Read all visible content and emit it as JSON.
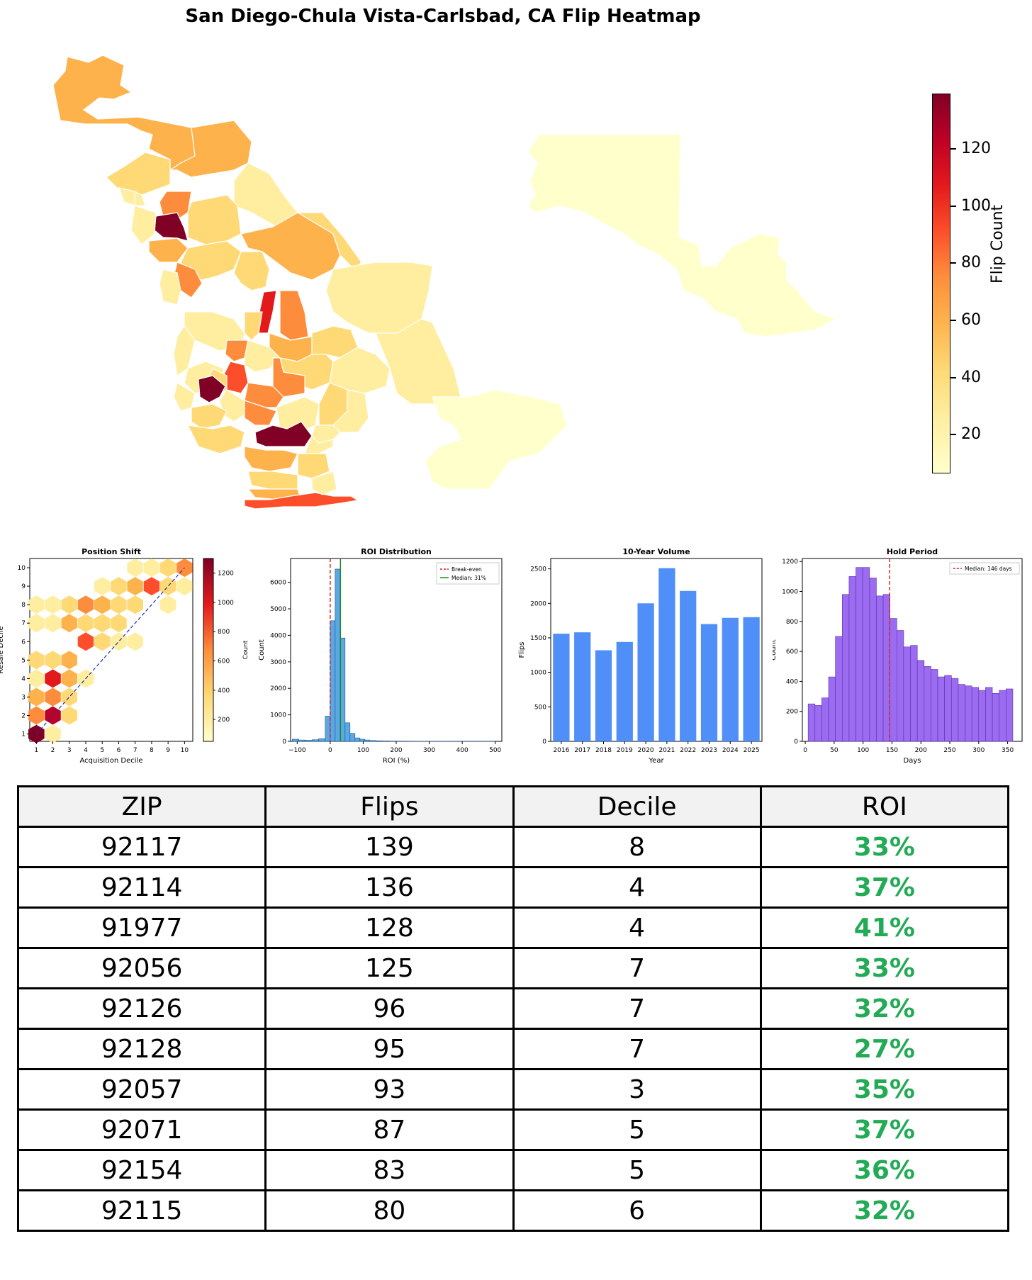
{
  "title": "San Diego-Chula Vista-Carlsbad, CA Flip Heatmap",
  "colorbar": {
    "label": "Flip Count",
    "ticks": [
      "20",
      "40",
      "60",
      "80",
      "100",
      "120"
    ],
    "min": 5,
    "max": 139
  },
  "colors": {
    "roi_positive": "#22aa55",
    "bar": "#4f8ff7",
    "hold_bar": "#9b6cf0",
    "roi_bar": "#5aa9e6"
  },
  "chart_data": [
    {
      "type": "heatmap",
      "title": "Position Shift",
      "xlabel": "Acquisition Decile",
      "ylabel": "Resale Decile",
      "colorbar_label": "Count",
      "x_ticks": [
        "1",
        "2",
        "3",
        "4",
        "5",
        "6",
        "7",
        "8",
        "9",
        "10"
      ],
      "y_ticks": [
        "1",
        "2",
        "3",
        "4",
        "5",
        "6",
        "7",
        "8",
        "9",
        "10"
      ],
      "colorbar_ticks": [
        "200",
        "400",
        "600",
        "800",
        "1000",
        "1200"
      ],
      "xlim": [
        1,
        10
      ],
      "ylim": [
        1,
        10
      ],
      "cells": [
        {
          "x": 1,
          "y": 1,
          "v": 1300
        },
        {
          "x": 2,
          "y": 1,
          "v": 150
        },
        {
          "x": 1,
          "y": 2,
          "v": 650
        },
        {
          "x": 2,
          "y": 2,
          "v": 1100
        },
        {
          "x": 3,
          "y": 2,
          "v": 400
        },
        {
          "x": 1,
          "y": 3,
          "v": 550
        },
        {
          "x": 2,
          "y": 3,
          "v": 700
        },
        {
          "x": 3,
          "y": 3,
          "v": 350
        },
        {
          "x": 2,
          "y": 4,
          "v": 900
        },
        {
          "x": 3,
          "y": 4,
          "v": 450
        },
        {
          "x": 4,
          "y": 4,
          "v": 200
        },
        {
          "x": 1,
          "y": 4,
          "v": 200
        },
        {
          "x": 2,
          "y": 5,
          "v": 400
        },
        {
          "x": 3,
          "y": 5,
          "v": 500
        },
        {
          "x": 1,
          "y": 5,
          "v": 250
        },
        {
          "x": 4,
          "y": 6,
          "v": 850
        },
        {
          "x": 5,
          "y": 6,
          "v": 250
        },
        {
          "x": 6,
          "y": 6,
          "v": 150
        },
        {
          "x": 7,
          "y": 6,
          "v": 150
        },
        {
          "x": 1,
          "y": 7,
          "v": 150
        },
        {
          "x": 2,
          "y": 7,
          "v": 200
        },
        {
          "x": 3,
          "y": 7,
          "v": 450
        },
        {
          "x": 4,
          "y": 8,
          "v": 600
        },
        {
          "x": 5,
          "y": 8,
          "v": 550
        },
        {
          "x": 6,
          "y": 8,
          "v": 300
        },
        {
          "x": 3,
          "y": 8,
          "v": 250
        },
        {
          "x": 1,
          "y": 8,
          "v": 150
        },
        {
          "x": 2,
          "y": 8,
          "v": 150
        },
        {
          "x": 7,
          "y": 8,
          "v": 400
        },
        {
          "x": 4,
          "y": 7,
          "v": 350
        },
        {
          "x": 5,
          "y": 7,
          "v": 300
        },
        {
          "x": 6,
          "y": 7,
          "v": 250
        },
        {
          "x": 7,
          "y": 9,
          "v": 450
        },
        {
          "x": 8,
          "y": 9,
          "v": 800
        },
        {
          "x": 9,
          "y": 9,
          "v": 300
        },
        {
          "x": 5,
          "y": 9,
          "v": 200
        },
        {
          "x": 6,
          "y": 9,
          "v": 250
        },
        {
          "x": 8,
          "y": 10,
          "v": 200
        },
        {
          "x": 9,
          "y": 10,
          "v": 300
        },
        {
          "x": 10,
          "y": 10,
          "v": 700
        },
        {
          "x": 7,
          "y": 10,
          "v": 150
        },
        {
          "x": 10,
          "y": 9,
          "v": 200
        },
        {
          "x": 9,
          "y": 8,
          "v": 200
        }
      ]
    },
    {
      "type": "bar",
      "title": "ROI Distribution",
      "xlabel": "ROI (%)",
      "ylabel": "Count",
      "x_ticks": [
        "−100",
        "0",
        "100",
        "200",
        "300",
        "400",
        "500"
      ],
      "y_ticks": [
        "0",
        "1000",
        "2000",
        "3000",
        "4000",
        "5000",
        "6000"
      ],
      "xlim": [
        -120,
        520
      ],
      "ylim": [
        0,
        6900
      ],
      "bin_edges": [
        -115,
        -95,
        -75,
        -55,
        -35,
        -15,
        0,
        15,
        30,
        45,
        60,
        75,
        90,
        105,
        120,
        140,
        160,
        180,
        200,
        220,
        240,
        260,
        280,
        300,
        320,
        340,
        360,
        380,
        400,
        420,
        440,
        460,
        480,
        500
      ],
      "counts": [
        80,
        50,
        40,
        60,
        100,
        950,
        4550,
        6500,
        3900,
        700,
        300,
        130,
        80,
        50,
        30,
        20,
        15,
        10,
        10,
        8,
        5,
        5,
        4,
        4,
        3,
        3,
        3,
        2,
        2,
        2,
        2,
        2,
        2
      ],
      "lines": [
        {
          "name": "Break-even",
          "x": 0,
          "color": "#e02020"
        },
        {
          "name": "Median: 31%",
          "x": 31,
          "color": "#228822"
        }
      ]
    },
    {
      "type": "bar",
      "title": "10-Year Volume",
      "xlabel": "Year",
      "ylabel": "Flips",
      "categories": [
        "2016",
        "2017",
        "2018",
        "2019",
        "2020",
        "2021",
        "2022",
        "2023",
        "2024",
        "2025"
      ],
      "values": [
        1560,
        1580,
        1320,
        1440,
        2000,
        2510,
        2180,
        1700,
        1790,
        1800
      ],
      "y_ticks": [
        "0",
        "500",
        "1000",
        "1500",
        "2000",
        "2500"
      ],
      "ylim": [
        0,
        2650
      ]
    },
    {
      "type": "bar",
      "title": "Hold Period",
      "xlabel": "Days",
      "ylabel": "Count",
      "x_ticks": [
        "0",
        "50",
        "100",
        "150",
        "200",
        "250",
        "300",
        "350"
      ],
      "y_ticks": [
        "0",
        "200",
        "400",
        "600",
        "800",
        "1000",
        "1200"
      ],
      "xlim": [
        -5,
        375
      ],
      "ylim": [
        0,
        1220
      ],
      "bin_start": 5,
      "bin_width": 11.8,
      "counts": [
        250,
        240,
        290,
        430,
        700,
        980,
        1100,
        1160,
        1160,
        1090,
        970,
        980,
        820,
        740,
        630,
        640,
        540,
        500,
        480,
        430,
        440,
        420,
        380,
        370,
        360,
        340,
        360,
        320,
        340,
        350
      ],
      "lines": [
        {
          "name": "Median: 146 days",
          "x": 146,
          "color": "#e02020"
        }
      ]
    },
    {
      "type": "table",
      "columns": [
        "ZIP",
        "Flips",
        "Decile",
        "ROI"
      ],
      "rows": [
        [
          "92117",
          "139",
          "8",
          "33%"
        ],
        [
          "92114",
          "136",
          "4",
          "37%"
        ],
        [
          "91977",
          "128",
          "4",
          "41%"
        ],
        [
          "92056",
          "125",
          "7",
          "33%"
        ],
        [
          "92126",
          "96",
          "7",
          "32%"
        ],
        [
          "92128",
          "95",
          "7",
          "27%"
        ],
        [
          "92057",
          "93",
          "3",
          "35%"
        ],
        [
          "92071",
          "87",
          "5",
          "37%"
        ],
        [
          "92154",
          "83",
          "5",
          "36%"
        ],
        [
          "92115",
          "80",
          "6",
          "32%"
        ]
      ]
    }
  ]
}
